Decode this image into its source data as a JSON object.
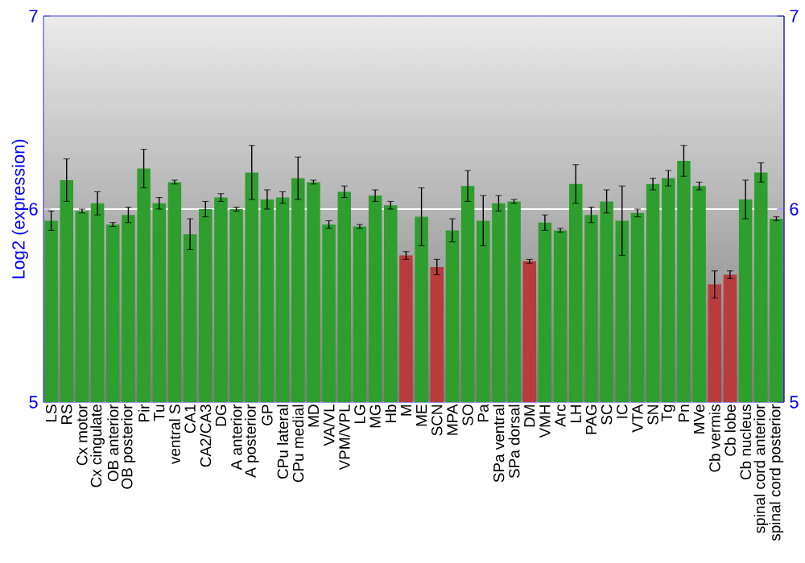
{
  "chart_data": {
    "type": "bar",
    "ylabel": "Log2 (expression)",
    "categories": [
      "LS",
      "RS",
      "Cx motor",
      "Cx cingulate",
      "OB anterior",
      "OB posterior",
      "Pir",
      "Tu",
      "ventral S",
      "CA1",
      "CA2/CA3",
      "DG",
      "A anterior",
      "A posterior",
      "GP",
      "CPu lateral",
      "CPu medial",
      "MD",
      "VA/VL",
      "VPM/VPL",
      "LG",
      "MG",
      "Hb",
      "M",
      "ME",
      "SCN",
      "MPA",
      "SO",
      "Pa",
      "SPa ventral",
      "SPa dorsal",
      "DM",
      "VMH",
      "Arc",
      "LH",
      "PAG",
      "SC",
      "IC",
      "VTA",
      "SN",
      "Tg",
      "Pn",
      "MVe",
      "Cb vermis",
      "Cb lobe",
      "Cb nucleus",
      "spinal cord anterior",
      "spinal cord posterior"
    ],
    "values": [
      5.94,
      6.15,
      5.99,
      6.03,
      5.92,
      5.97,
      6.21,
      6.03,
      6.14,
      5.87,
      6.0,
      6.06,
      6.0,
      6.19,
      6.05,
      6.06,
      6.16,
      6.14,
      5.92,
      6.09,
      5.91,
      6.07,
      6.02,
      5.76,
      5.96,
      5.7,
      5.89,
      6.12,
      5.94,
      6.03,
      6.04,
      5.73,
      5.93,
      5.89,
      6.13,
      5.97,
      6.04,
      5.94,
      5.98,
      6.13,
      6.16,
      6.25,
      6.12,
      5.61,
      5.66,
      6.05,
      6.19,
      5.95
    ],
    "errors": [
      0.05,
      0.11,
      0.01,
      0.06,
      0.01,
      0.04,
      0.1,
      0.03,
      0.01,
      0.08,
      0.04,
      0.02,
      0.01,
      0.14,
      0.05,
      0.03,
      0.11,
      0.01,
      0.02,
      0.03,
      0.01,
      0.03,
      0.02,
      0.02,
      0.15,
      0.04,
      0.06,
      0.08,
      0.13,
      0.04,
      0.01,
      0.01,
      0.04,
      0.01,
      0.1,
      0.04,
      0.06,
      0.18,
      0.02,
      0.03,
      0.04,
      0.08,
      0.02,
      0.07,
      0.02,
      0.1,
      0.05,
      0.01
    ],
    "colors": [
      "#2e9e2e",
      "#2e9e2e",
      "#2e9e2e",
      "#2e9e2e",
      "#2e9e2e",
      "#2e9e2e",
      "#2e9e2e",
      "#2e9e2e",
      "#2e9e2e",
      "#2e9e2e",
      "#2e9e2e",
      "#2e9e2e",
      "#2e9e2e",
      "#2e9e2e",
      "#2e9e2e",
      "#2e9e2e",
      "#2e9e2e",
      "#2e9e2e",
      "#2e9e2e",
      "#2e9e2e",
      "#2e9e2e",
      "#2e9e2e",
      "#2e9e2e",
      "#b83c3c",
      "#2e9e2e",
      "#b83c3c",
      "#2e9e2e",
      "#2e9e2e",
      "#2e9e2e",
      "#2e9e2e",
      "#2e9e2e",
      "#b83c3c",
      "#2e9e2e",
      "#2e9e2e",
      "#2e9e2e",
      "#2e9e2e",
      "#2e9e2e",
      "#2e9e2e",
      "#2e9e2e",
      "#2e9e2e",
      "#2e9e2e",
      "#2e9e2e",
      "#2e9e2e",
      "#b83c3c",
      "#b83c3c",
      "#2e9e2e",
      "#2e9e2e",
      "#2e9e2e"
    ],
    "ylim": [
      5,
      7
    ],
    "yticks": [
      5,
      6,
      7
    ],
    "y2lim": [
      5,
      7
    ],
    "y2ticks": [
      5,
      6,
      7
    ],
    "grid": "y"
  }
}
